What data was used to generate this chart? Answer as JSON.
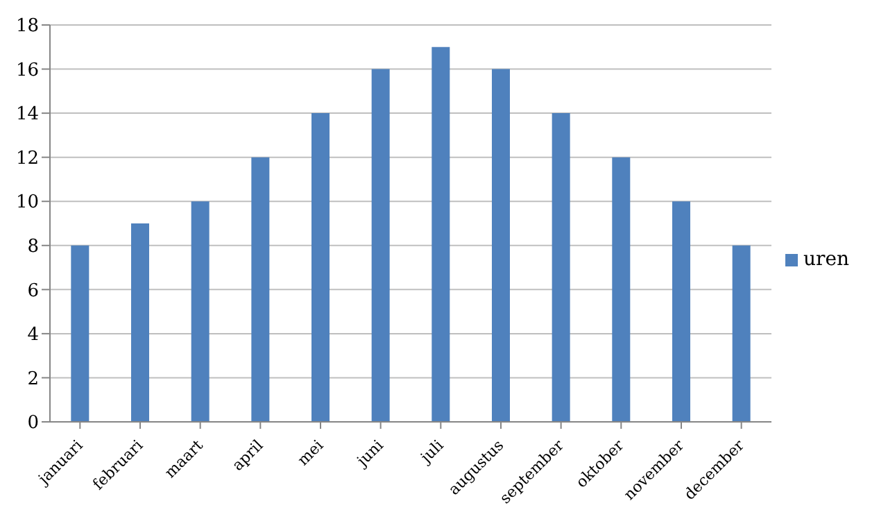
{
  "chart_data": {
    "type": "bar",
    "categories": [
      "januari",
      "februari",
      "maart",
      "april",
      "mei",
      "juni",
      "juli",
      "augustus",
      "september",
      "oktober",
      "november",
      "december"
    ],
    "series": [
      {
        "name": "uren",
        "color": "#4f81bd",
        "values": [
          8,
          9,
          10,
          12,
          14,
          16,
          17,
          16,
          14,
          12,
          10,
          8
        ]
      }
    ],
    "ylim": [
      0,
      18
    ],
    "yticks": [
      0,
      2,
      4,
      6,
      8,
      10,
      12,
      14,
      16,
      18
    ],
    "grid": "y",
    "legend": "right"
  }
}
